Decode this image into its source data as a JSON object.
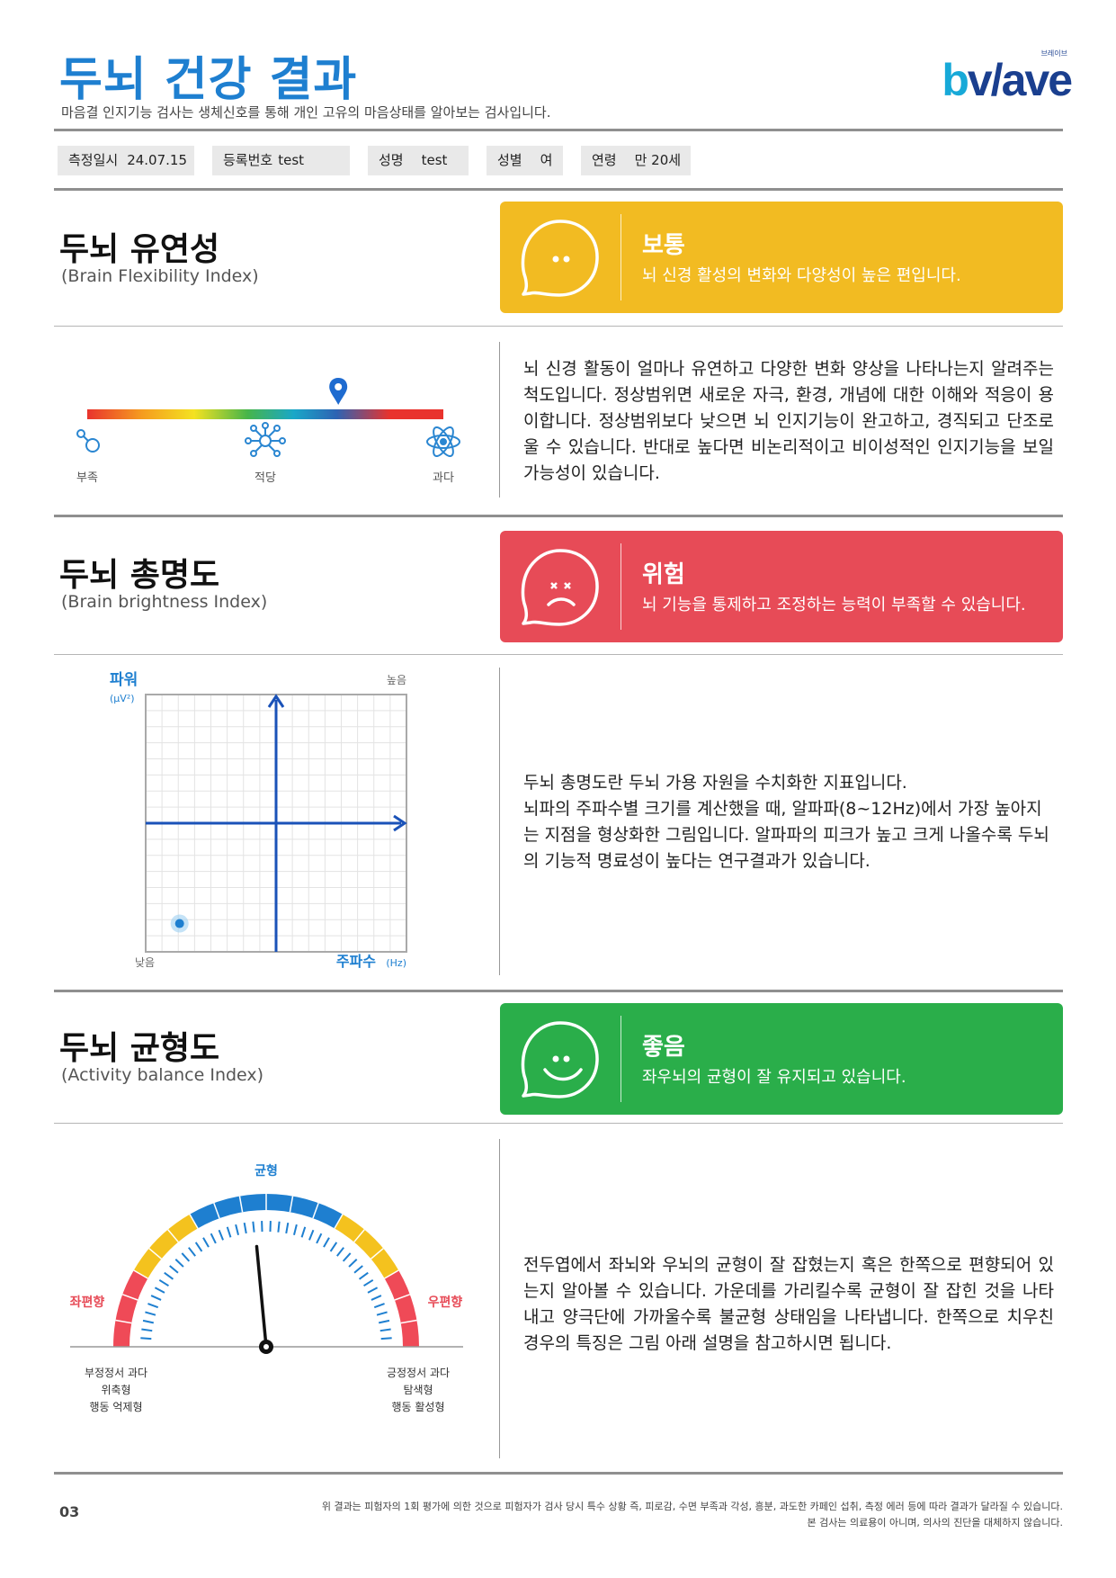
{
  "header": {
    "title": "두뇌 건강 결과",
    "subtitle": "마음결 인지기능 검사는 생체신호를 통해 개인 고유의 마음상태를 알아보는 검사입니다.",
    "logo_small": "브레이브",
    "logo_b": "b",
    "logo_rest": "v/ave"
  },
  "info": {
    "date_label": "측정일시",
    "date_value": "24.07.15",
    "reg_label": "등록번호",
    "reg_value": "test",
    "name_label": "성명",
    "name_value": "test",
    "sex_label": "성별",
    "sex_value": "여",
    "age_label": "연령",
    "age_value": "만 20세"
  },
  "flexibility": {
    "title": "두뇌 유연성",
    "subtitle": "(Brain Flexibility Index)",
    "status_title": "보통",
    "status_desc": "뇌 신경 활성의 변화와 다양성이 높은 편입니다.",
    "status_color": "#f2bb22",
    "scale_labels": [
      "부족",
      "적당",
      "과다"
    ],
    "marker_position": 0.705,
    "description": "뇌 신경 활동이 얼마나 유연하고 다양한 변화 양상을 나타나는지 알려주는 척도입니다. 정상범위면 새로운 자극, 환경, 개념에 대한 이해와 적응이 용이합니다. 정상범위보다 낮으면 뇌 인지기능이 완고하고, 경직되고 단조로울 수 있습니다. 반대로 높다면 비논리적이고 비이성적인 인지기능을 보일 가능성이 있습니다."
  },
  "brightness": {
    "title": "두뇌 총명도",
    "subtitle": "(Brain brightness Index)",
    "status_title": "위험",
    "status_desc": "뇌 기능을 통제하고 조정하는 능력이 부족할 수 있습니다.",
    "status_color": "#e74b57",
    "y_label": "파워",
    "y_unit": "(μV²)",
    "x_label": "주파수",
    "x_unit": "(Hz)",
    "high_label": "높음",
    "low_label": "낮음",
    "point": {
      "x": 0.13,
      "y": 0.11
    },
    "description_lines": [
      "두뇌 총명도란 두뇌 가용 자원을 수치화한 지표입니다.",
      "뇌파의 주파수별 크기를 계산했을 때, 알파파(8~12Hz)에서 가장 높아지는 지점을 형상화한 그림입니다. 알파파의 피크가 높고 크게 나올수록 두뇌의 기능적 명료성이 높다는 연구결과가 있습니다."
    ]
  },
  "balance": {
    "title": "두뇌 균형도",
    "subtitle": "(Activity balance Index)",
    "status_title": "좋음",
    "status_desc": "좌우뇌의 균형이 잘 유지되고 있습니다.",
    "status_color": "#2aae4a",
    "center_label": "균형",
    "left_label": "좌편향",
    "right_label": "우편향",
    "left_desc": [
      "부정정서 과다",
      "위축형",
      "행동 억제형"
    ],
    "right_desc": [
      "긍정정서 과다",
      "탐색형",
      "행동 활성형"
    ],
    "needle_value": -0.06,
    "description": "전두엽에서 좌뇌와 우뇌의 균형이 잘 잡혔는지 혹은 한쪽으로 편향되어 있는지 알아볼 수 있습니다. 가운데를 가리킬수록 균형이 잘 잡힌 것을 나타내고 양극단에 가까울수록 불균형 상태임을 나타냅니다. 한쪽으로 치우친 경우의 특징은 그림 아래 설명을 참고하시면 됩니다."
  },
  "footer": {
    "page": "03",
    "note1": "위 결과는 피험자의 1회 평가에 의한 것으로 피험자가 검사 당시 특수 상황 즉, 피로감, 수면 부족과 각성, 흥분, 과도한 카페인 섭취, 측정 에러 등에 따라 결과가 달라질 수 있습니다.",
    "note2": "본 검사는 의료용이 아니며, 의사의 진단을 대체하지 않습니다."
  }
}
